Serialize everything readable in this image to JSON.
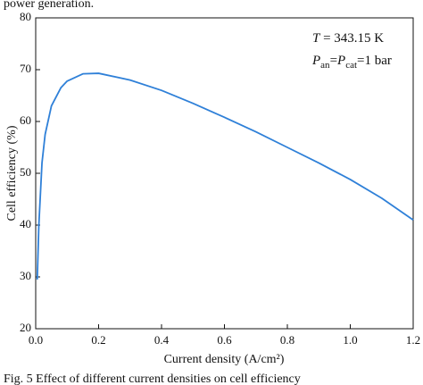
{
  "chart_data": {
    "type": "line",
    "text_above": "power generation.",
    "caption": "Fig. 5   Effect of different current densities on cell efficiency",
    "xlabel": "Current density (A/cm²)",
    "ylabel": "Cell efficiency (%)",
    "annotations": [
      [
        {
          "text": "T",
          "style": "italic"
        },
        {
          "text": " = 343.15 K",
          "style": "normal"
        }
      ],
      [
        {
          "text": "P",
          "style": "italic"
        },
        {
          "text": "an",
          "style": "sub"
        },
        {
          "text": "=",
          "style": "normal"
        },
        {
          "text": "P",
          "style": "italic"
        },
        {
          "text": "cat",
          "style": "sub"
        },
        {
          "text": "=1 bar",
          "style": "normal"
        }
      ]
    ],
    "x": [
      0.005,
      0.01,
      0.02,
      0.03,
      0.05,
      0.08,
      0.1,
      0.15,
      0.2,
      0.3,
      0.4,
      0.5,
      0.6,
      0.7,
      0.8,
      0.9,
      1.0,
      1.1,
      1.2
    ],
    "series": [
      {
        "name": "Cell efficiency",
        "color": "#2f80d8",
        "values": [
          29.5,
          40,
          52,
          57.5,
          63,
          66.5,
          67.8,
          69.2,
          69.3,
          68,
          66,
          63.5,
          60.8,
          58,
          55,
          52,
          48.8,
          45.2,
          41
        ]
      }
    ],
    "xlim": [
      0,
      1.2
    ],
    "ylim": [
      20,
      80
    ],
    "xticks": [
      {
        "value": 0,
        "label": "0.0"
      },
      0.2,
      0.4,
      0.6,
      0.8,
      {
        "value": 1,
        "label": "1.0"
      },
      1.2
    ],
    "yticks": [
      20,
      30,
      40,
      50,
      60,
      70,
      80
    ]
  }
}
